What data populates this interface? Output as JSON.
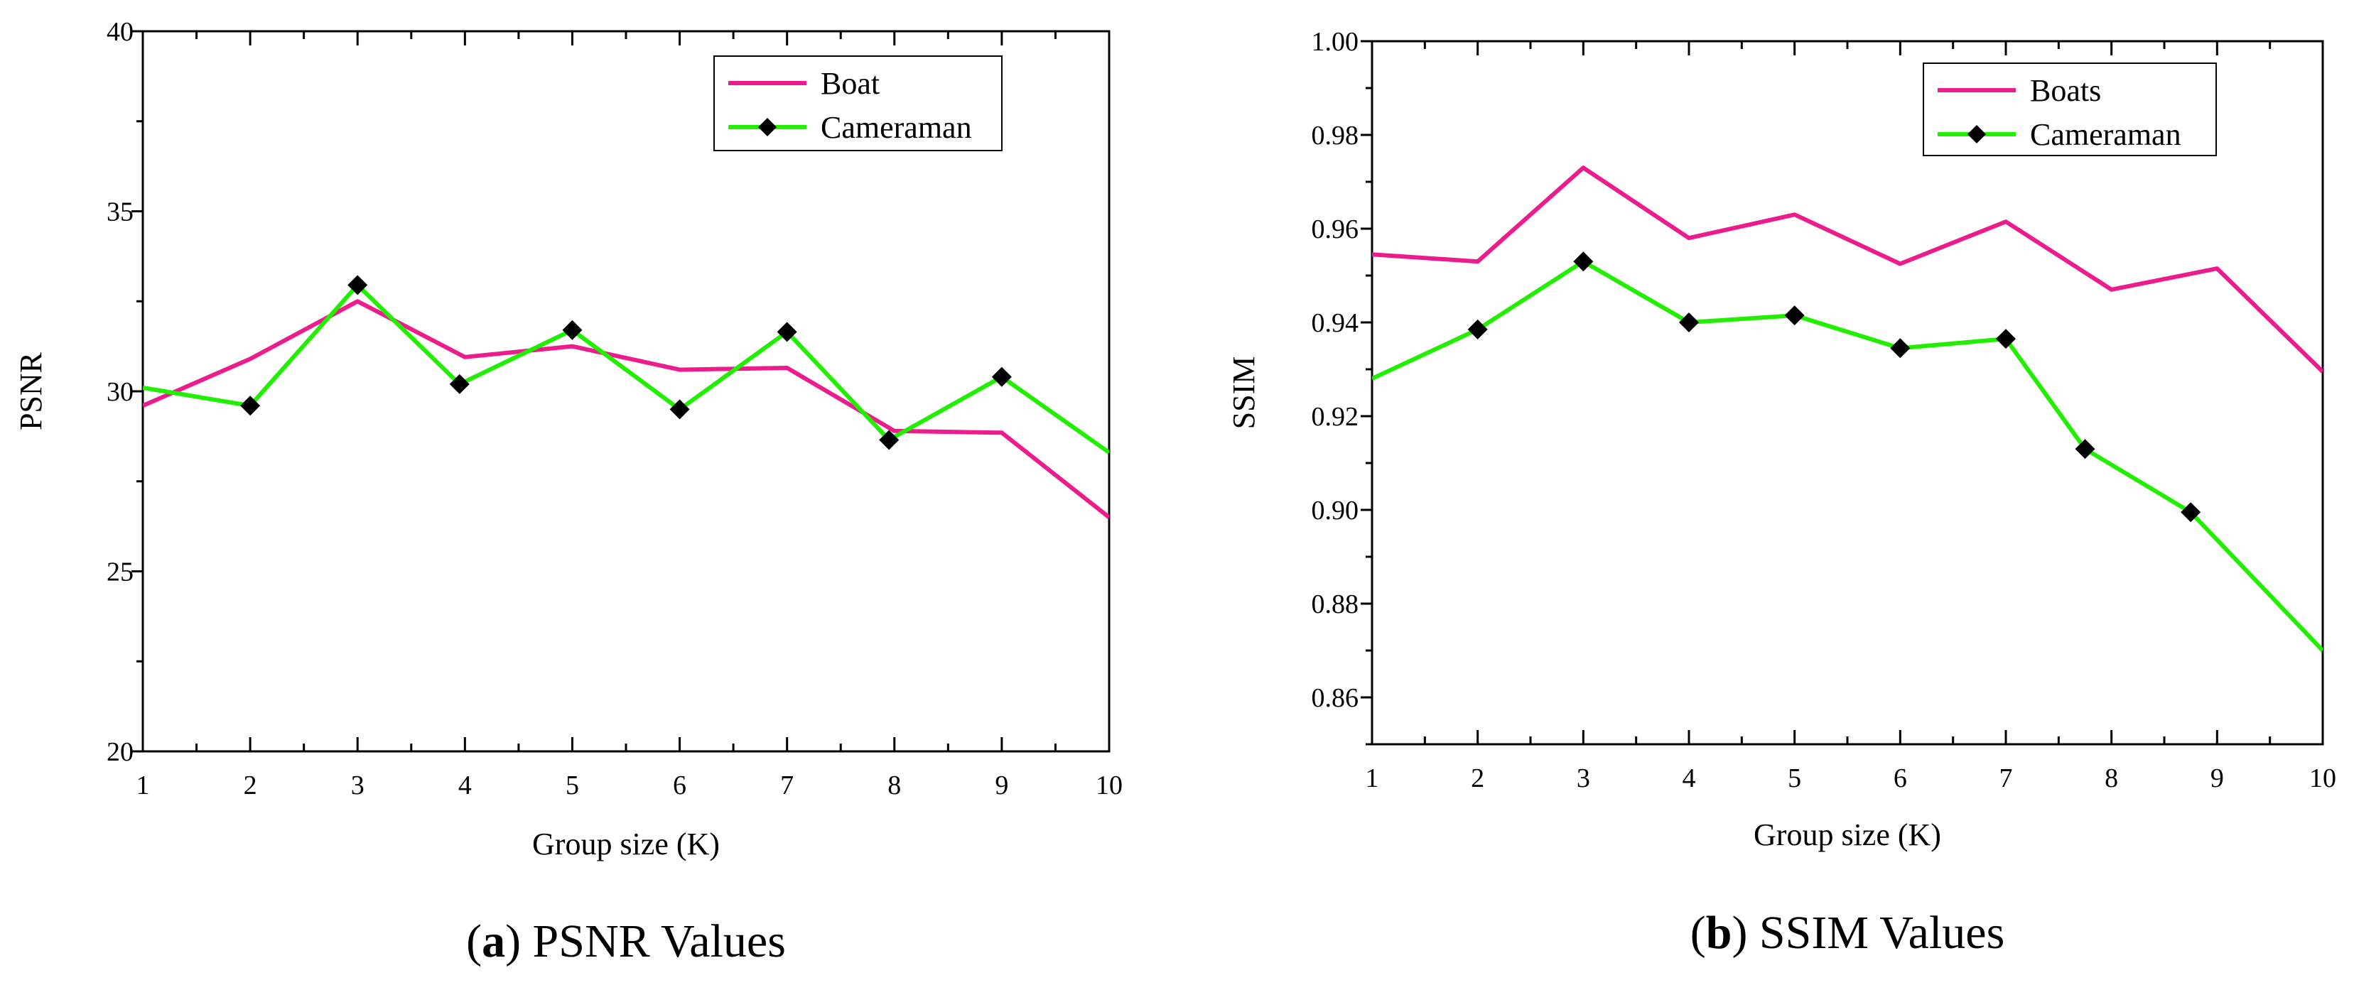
{
  "colors": {
    "series1": "#ec1c8c",
    "series2": "#22ee00",
    "marker": "#000000",
    "axis": "#000000"
  },
  "chart_data": [
    {
      "id": "a",
      "type": "line",
      "caption_letter": "a",
      "caption_text": "PSNR Values",
      "xlabel": "Group size (K)",
      "ylabel": "PSNR",
      "xlim": [
        1,
        10
      ],
      "ylim": [
        20,
        40
      ],
      "xticks": [
        1,
        2,
        3,
        4,
        5,
        6,
        7,
        8,
        9,
        10
      ],
      "yticks": [
        20,
        25,
        30,
        35,
        40
      ],
      "yminor": 2.5,
      "legend_position": "top-right",
      "series": [
        {
          "name": "Boat",
          "markers": false,
          "x": [
            1,
            2,
            3,
            4,
            5,
            6,
            7,
            8,
            9,
            10
          ],
          "y": [
            29.6,
            30.9,
            32.5,
            30.95,
            31.25,
            30.6,
            30.65,
            28.9,
            28.85,
            26.5
          ]
        },
        {
          "name": "Cameraman",
          "markers": true,
          "marker_start": 1,
          "marker_end": 8,
          "x": [
            1,
            2,
            3,
            3.95,
            5,
            6,
            7,
            7.95,
            9,
            10
          ],
          "y": [
            30.1,
            29.6,
            32.95,
            30.2,
            31.7,
            29.5,
            31.65,
            28.65,
            30.4,
            28.3
          ]
        }
      ]
    },
    {
      "id": "b",
      "type": "line",
      "caption_letter": "b",
      "caption_text": "SSIM Values",
      "xlabel": "Group size (K)",
      "ylabel": "SSIM",
      "xlim": [
        1,
        10
      ],
      "ylim": [
        0.85,
        1.0
      ],
      "xticks": [
        1,
        2,
        3,
        4,
        5,
        6,
        7,
        8,
        9,
        10
      ],
      "yticks": [
        0.86,
        0.88,
        0.9,
        0.92,
        0.94,
        0.96,
        0.98,
        1.0
      ],
      "yminor": 0.01,
      "ytick_decimals": 2,
      "legend_position": "top-right",
      "series": [
        {
          "name": "Boats",
          "markers": false,
          "x": [
            1,
            2,
            3,
            4,
            5,
            6,
            7,
            8,
            9,
            10
          ],
          "y": [
            0.9545,
            0.953,
            0.973,
            0.958,
            0.963,
            0.9525,
            0.9615,
            0.947,
            0.9515,
            0.9295
          ]
        },
        {
          "name": "Cameraman",
          "markers": true,
          "marker_start": 1,
          "marker_end": 8,
          "x": [
            1,
            2,
            3,
            4,
            5,
            6,
            7,
            7.75,
            8.75,
            10
          ],
          "y": [
            0.928,
            0.9385,
            0.953,
            0.94,
            0.9415,
            0.9345,
            0.9365,
            0.913,
            0.8995,
            0.87
          ]
        }
      ]
    }
  ]
}
